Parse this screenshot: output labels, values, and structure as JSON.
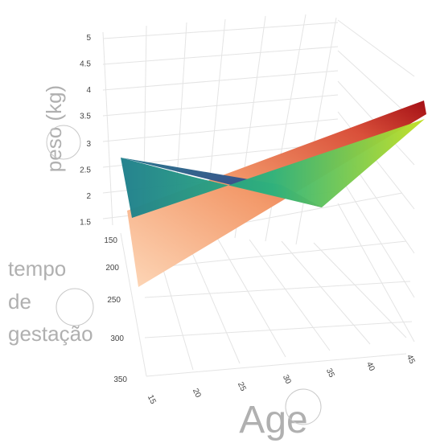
{
  "chart_data": {
    "type": "surface",
    "axis_titles": {
      "z": "peso (kg)",
      "y": [
        "tempo",
        "de",
        "gestação"
      ],
      "x": "Age"
    },
    "z_ticks": [
      "5",
      "4.5",
      "4",
      "3.5",
      "3",
      "2.5",
      "2",
      "1.5"
    ],
    "y_ticks": [
      "150",
      "200",
      "250",
      "300",
      "350"
    ],
    "x_ticks": [
      "15",
      "20",
      "25",
      "30",
      "35",
      "40",
      "45"
    ],
    "zlim": [
      1.5,
      5
    ],
    "ylim": [
      150,
      350
    ],
    "xlim": [
      15,
      45
    ],
    "grid": true,
    "surfaces": [
      {
        "colorscale": "viridis",
        "corners": [
          {
            "age": 15,
            "gestation": 350,
            "weight": 2.7
          },
          {
            "age": 15,
            "gestation": 150,
            "weight": 1.5
          },
          {
            "age": 45,
            "gestation": 150,
            "weight": 3.4
          },
          {
            "age": 45,
            "gestation": 350,
            "weight": 2.0
          }
        ]
      },
      {
        "colorscale": "oranges-reds",
        "corners": [
          {
            "age": 15,
            "gestation": 150,
            "weight": 1.5
          },
          {
            "age": 15,
            "gestation": 350,
            "weight": 0.4
          },
          {
            "age": 45,
            "gestation": 350,
            "weight": 3.7
          },
          {
            "age": 45,
            "gestation": 150,
            "weight": 3.6
          }
        ]
      }
    ],
    "colors": {
      "viridis_low": "#440154",
      "viridis_mid": "#21918c",
      "viridis_high": "#fde725",
      "orange_low": "#fde0c5",
      "orange_mid": "#f08a58",
      "orange_high": "#a50f15"
    }
  }
}
